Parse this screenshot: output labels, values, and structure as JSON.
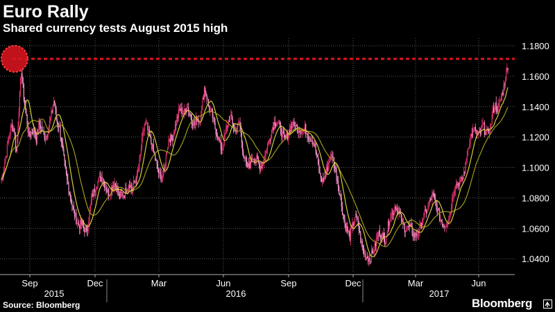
{
  "chart_data": {
    "type": "candlestick",
    "title": "Euro Rally",
    "subtitle": "Shared currency tests August 2015 high",
    "source": "Source: Bloomberg",
    "brand": "Bloomberg",
    "ylim": [
      1.031,
      1.185
    ],
    "y_ticks": [
      "1.1800",
      "1.1600",
      "1.1400",
      "1.1200",
      "1.1000",
      "1.0800",
      "1.0600",
      "1.0400"
    ],
    "x_month_ticks": [
      "Sep",
      "Dec",
      "Mar",
      "Jun",
      "Sep",
      "Dec",
      "Mar",
      "Jun"
    ],
    "x_year_labels": [
      "2015",
      "2016",
      "2017"
    ],
    "reference_line": {
      "value": 1.1714,
      "note": "August 2015 high"
    },
    "colors": {
      "up": "#e8306e",
      "down": "#ff9ad2",
      "ma_fast": "#d6cf3a",
      "ma_slow": "#9f9a1c",
      "reference": "#e0151f",
      "grid": "#5a5a5a",
      "text": "#ffffff"
    },
    "close_series": [
      1.092,
      1.1,
      1.11,
      1.121,
      1.127,
      1.125,
      1.11,
      1.14,
      1.165,
      1.145,
      1.133,
      1.12,
      1.123,
      1.125,
      1.118,
      1.129,
      1.126,
      1.12,
      1.121,
      1.128,
      1.135,
      1.145,
      1.13,
      1.128,
      1.117,
      1.104,
      1.093,
      1.085,
      1.077,
      1.07,
      1.065,
      1.062,
      1.063,
      1.06,
      1.058,
      1.068,
      1.08,
      1.085,
      1.09,
      1.092,
      1.094,
      1.09,
      1.085,
      1.083,
      1.087,
      1.09,
      1.087,
      1.08,
      1.083,
      1.082,
      1.087,
      1.09,
      1.085,
      1.09,
      1.093,
      1.102,
      1.116,
      1.128,
      1.127,
      1.12,
      1.115,
      1.108,
      1.101,
      1.095,
      1.093,
      1.098,
      1.112,
      1.12,
      1.118,
      1.125,
      1.132,
      1.138,
      1.137,
      1.136,
      1.141,
      1.136,
      1.131,
      1.128,
      1.133,
      1.13,
      1.14,
      1.153,
      1.146,
      1.137,
      1.135,
      1.127,
      1.122,
      1.116,
      1.112,
      1.12,
      1.127,
      1.133,
      1.131,
      1.124,
      1.126,
      1.13,
      1.115,
      1.105,
      1.1,
      1.101,
      1.107,
      1.106,
      1.105,
      1.1,
      1.102,
      1.107,
      1.114,
      1.119,
      1.126,
      1.13,
      1.13,
      1.126,
      1.122,
      1.118,
      1.121,
      1.125,
      1.128,
      1.127,
      1.126,
      1.125,
      1.124,
      1.126,
      1.122,
      1.12,
      1.118,
      1.114,
      1.105,
      1.095,
      1.091,
      1.094,
      1.1,
      1.106,
      1.108,
      1.1,
      1.092,
      1.082,
      1.072,
      1.063,
      1.058,
      1.055,
      1.061,
      1.068,
      1.065,
      1.055,
      1.047,
      1.042,
      1.041,
      1.04,
      1.044,
      1.048,
      1.055,
      1.058,
      1.055,
      1.052,
      1.06,
      1.068,
      1.07,
      1.075,
      1.072,
      1.068,
      1.063,
      1.06,
      1.06,
      1.061,
      1.057,
      1.055,
      1.057,
      1.06,
      1.066,
      1.07,
      1.073,
      1.078,
      1.082,
      1.077,
      1.072,
      1.066,
      1.063,
      1.062,
      1.066,
      1.07,
      1.082,
      1.088,
      1.09,
      1.09,
      1.093,
      1.1,
      1.112,
      1.12,
      1.123,
      1.125,
      1.121,
      1.122,
      1.128,
      1.124,
      1.122,
      1.126,
      1.137,
      1.141,
      1.138,
      1.144,
      1.15,
      1.159,
      1.167
    ]
  }
}
